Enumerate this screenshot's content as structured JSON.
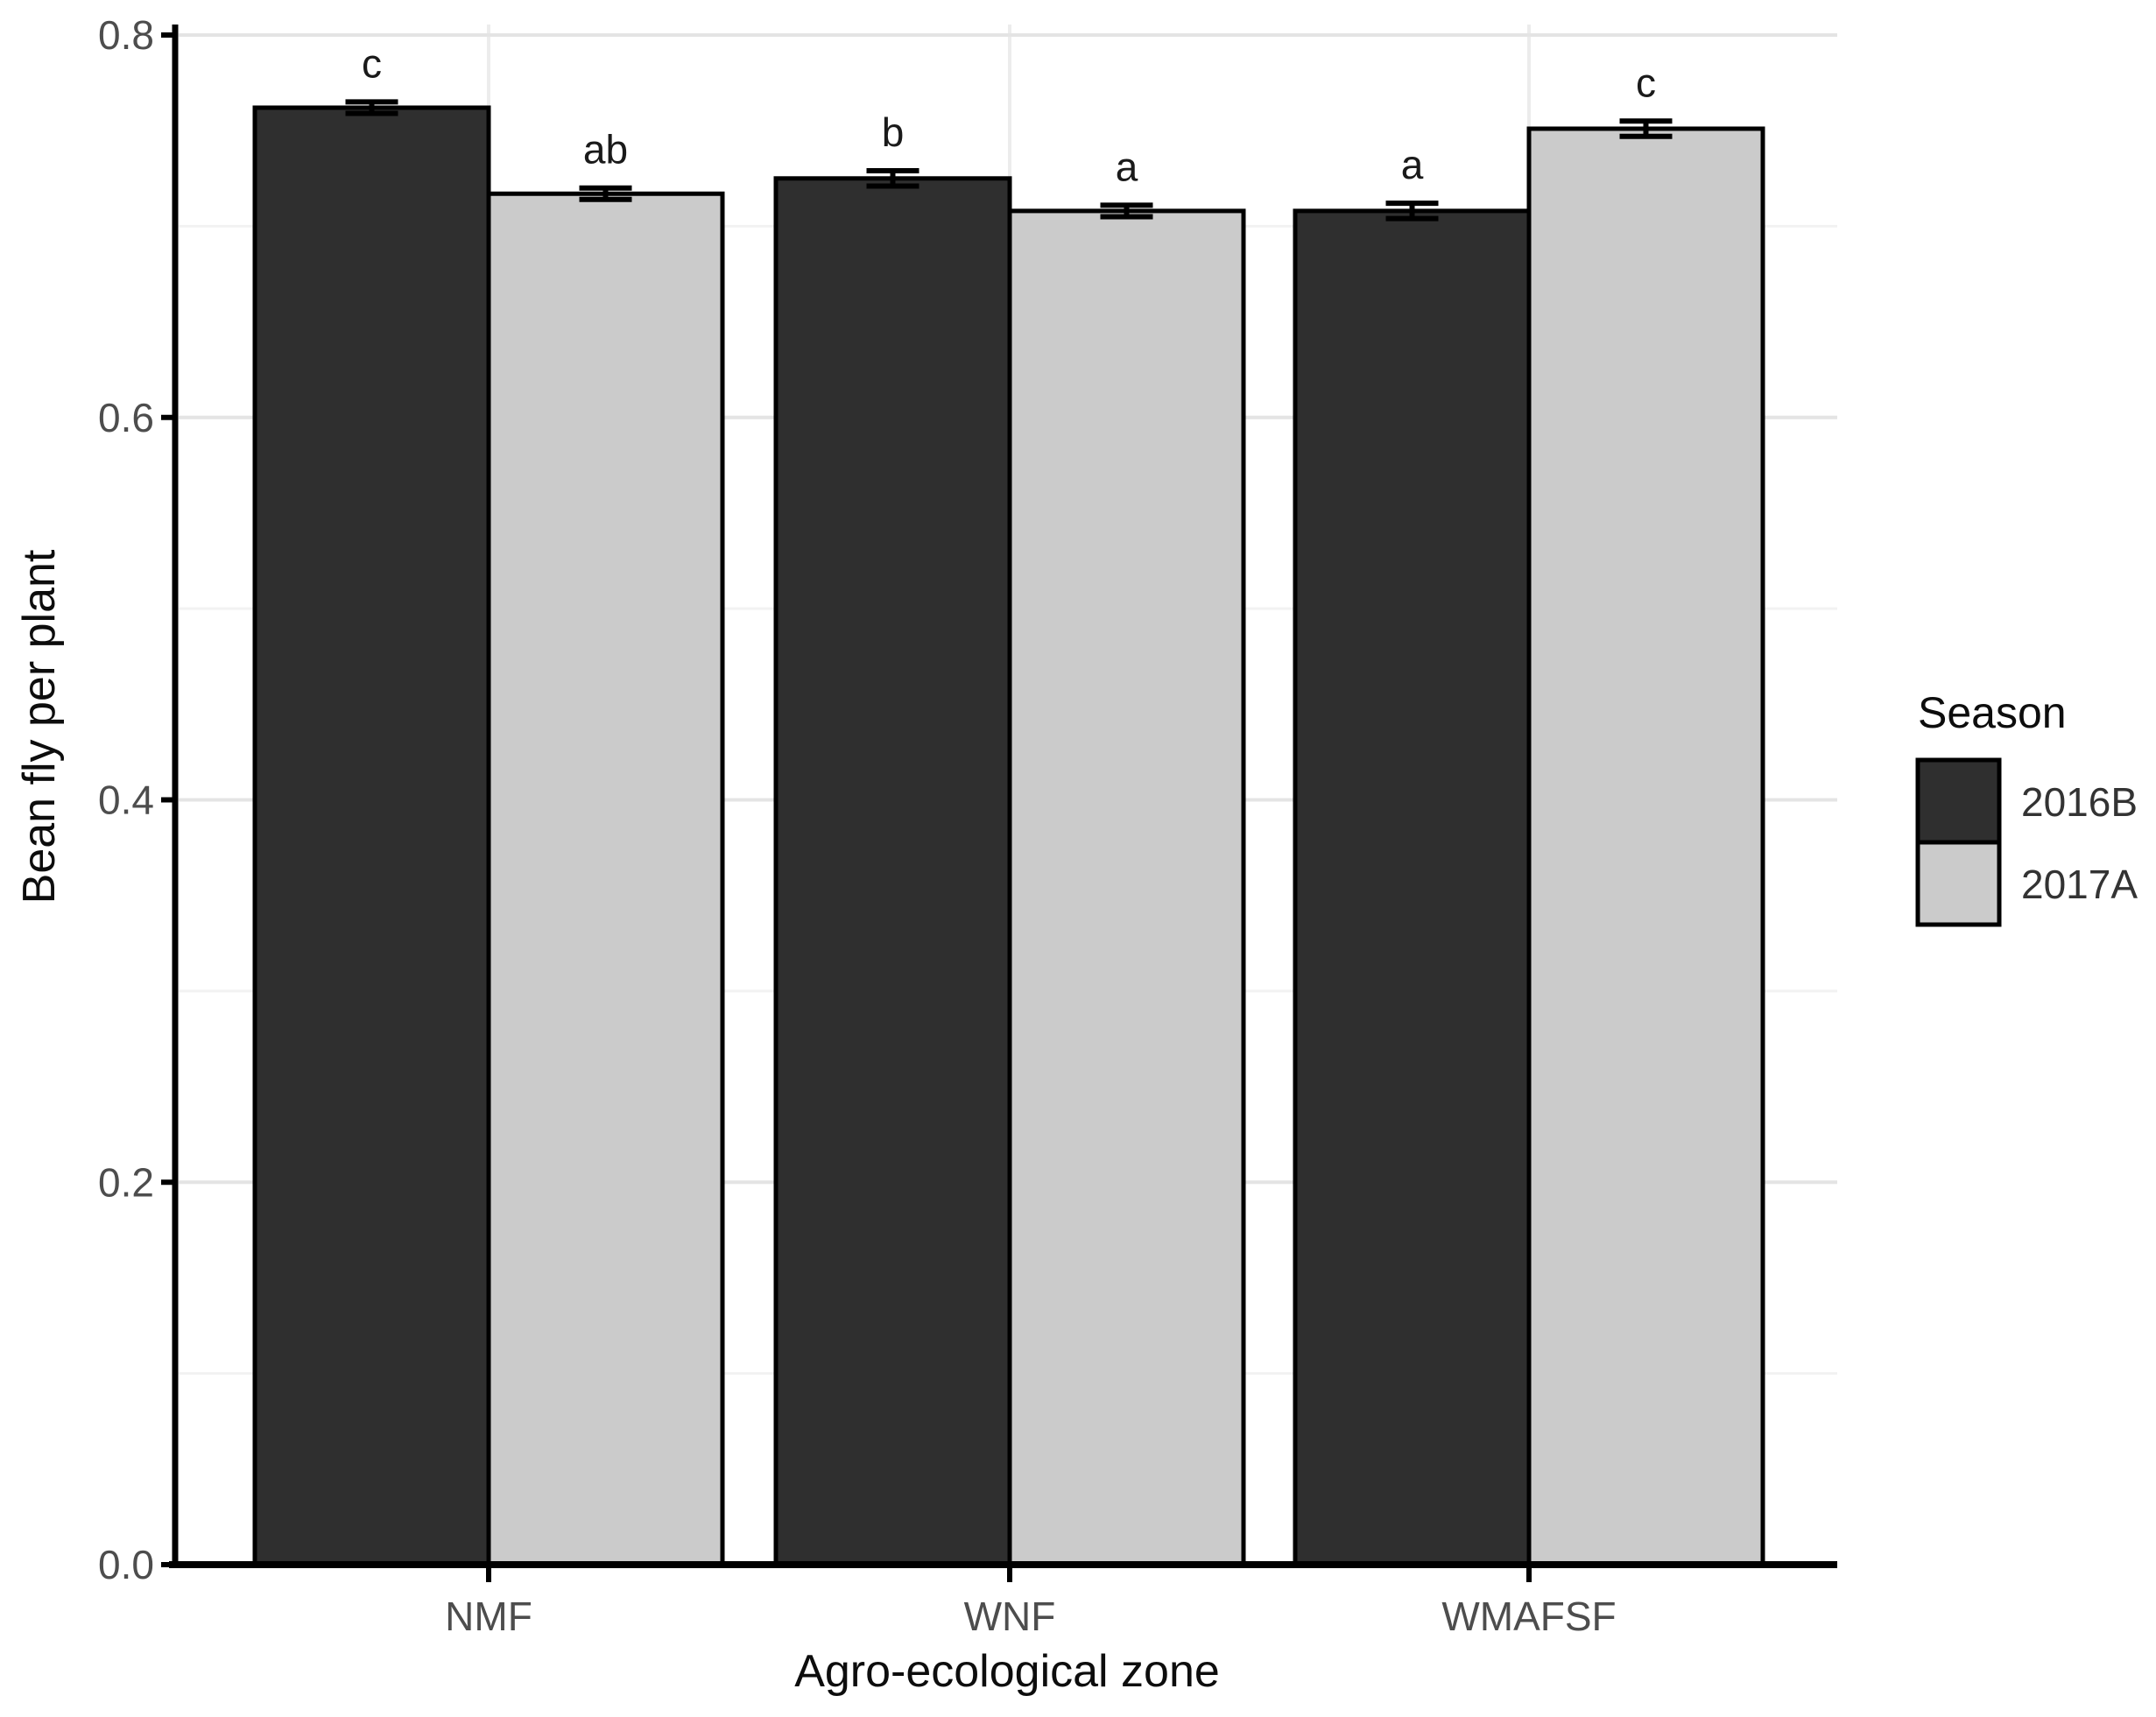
{
  "chart_data": {
    "type": "bar",
    "title": "",
    "xlabel": "Agro-ecological zone",
    "ylabel": "Bean fly per plant",
    "categories": [
      "NMF",
      "WNF",
      "WMAFSF"
    ],
    "series": [
      {
        "name": "2016B",
        "color": "#2f2f2f",
        "values": [
          0.762,
          0.725,
          0.708
        ],
        "errors": [
          0.003,
          0.004,
          0.004
        ],
        "sig_letters": [
          "c",
          "b",
          "a"
        ]
      },
      {
        "name": "2017A",
        "color": "#cbcbcb",
        "values": [
          0.717,
          0.708,
          0.751
        ],
        "errors": [
          0.003,
          0.003,
          0.004
        ],
        "sig_letters": [
          "ab",
          "a",
          "c"
        ]
      }
    ],
    "ylim": [
      0,
      0.8
    ],
    "yticks": [
      0,
      0.2,
      0.4,
      0.6,
      0.8
    ],
    "ytick_labels": [
      "0.0",
      "0.2",
      "0.4",
      "0.6",
      "0.8"
    ],
    "yticks_minor": [
      0.1,
      0.3,
      0.5,
      0.7
    ],
    "grid": true,
    "bar_outline": "#000000",
    "error_bar_color": "#000000",
    "legend": {
      "title": "Season",
      "position": "right"
    }
  },
  "colors": {
    "background": "#ffffff",
    "axis_line": "#000000",
    "tick_mark": "#000000",
    "tick_label": "#4d4d4d",
    "axis_title": "#0d0d0d",
    "sig_letter": "#1a1a1a",
    "grid_major": "#e4e4e4",
    "grid_minor": "#f2f2f2",
    "grid_vertical": "#ececec"
  }
}
